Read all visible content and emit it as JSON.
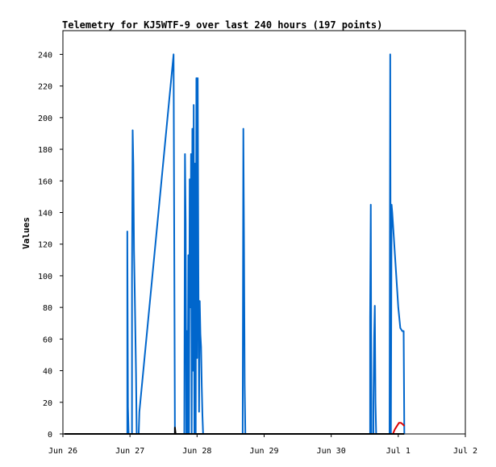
{
  "chart_data": {
    "type": "line",
    "title": "Telemetry for KJ5WTF-9 over last 240 hours (197 points)",
    "xlabel": "",
    "ylabel": "Values",
    "ylim": [
      0,
      255
    ],
    "xlim": [
      0,
      6
    ],
    "x_tick_values": [
      0,
      1,
      2,
      3,
      4,
      5,
      6
    ],
    "x_tick_labels": [
      "Jun 26",
      "Jun 27",
      "Jun 28",
      "Jun 29",
      "Jun 30",
      "Jul 1",
      "Jul 2"
    ],
    "y_ticks": [
      0,
      20,
      40,
      60,
      80,
      100,
      120,
      140,
      160,
      180,
      200,
      220,
      240
    ],
    "grid": false,
    "legend": "none",
    "colors": {
      "series_blue": "#0066cc",
      "series_red": "#dd0000",
      "series_black": "#000000"
    },
    "series": [
      {
        "color": "#0066cc",
        "points": [
          [
            0.96,
            0
          ],
          [
            0.96,
            128
          ],
          [
            0.97,
            17
          ],
          [
            0.98,
            0
          ],
          [
            1.03,
            0
          ],
          [
            1.03,
            97
          ],
          [
            1.04,
            192
          ],
          [
            1.05,
            170
          ],
          [
            1.06,
            116
          ],
          [
            1.07,
            92
          ],
          [
            1.08,
            65
          ],
          [
            1.09,
            38
          ],
          [
            1.1,
            0
          ],
          [
            1.13,
            0
          ],
          [
            1.14,
            14
          ],
          [
            1.65,
            240
          ],
          [
            1.66,
            120
          ],
          [
            1.67,
            0
          ],
          [
            1.81,
            0
          ],
          [
            1.82,
            177
          ],
          [
            1.83,
            134
          ],
          [
            1.84,
            0
          ],
          [
            1.85,
            65
          ],
          [
            1.86,
            0
          ],
          [
            1.87,
            113
          ],
          [
            1.88,
            0
          ],
          [
            1.89,
            161
          ],
          [
            1.9,
            80
          ],
          [
            1.91,
            177
          ],
          [
            1.92,
            0
          ],
          [
            1.93,
            193
          ],
          [
            1.94,
            40
          ],
          [
            1.95,
            208
          ],
          [
            1.96,
            0
          ],
          [
            1.97,
            171
          ],
          [
            1.98,
            0
          ],
          [
            1.99,
            225
          ],
          [
            2.0,
            48
          ],
          [
            2.01,
            225
          ],
          [
            2.02,
            100
          ],
          [
            2.03,
            14
          ],
          [
            2.04,
            84
          ],
          [
            2.05,
            63
          ],
          [
            2.06,
            55
          ],
          [
            2.07,
            30
          ],
          [
            2.08,
            12
          ],
          [
            2.09,
            0
          ],
          [
            2.68,
            0
          ],
          [
            2.69,
            193
          ],
          [
            2.7,
            120
          ],
          [
            2.71,
            31
          ],
          [
            2.72,
            0
          ],
          [
            4.58,
            0
          ],
          [
            4.58,
            73
          ],
          [
            4.59,
            145
          ],
          [
            4.6,
            0
          ],
          [
            4.63,
            0
          ],
          [
            4.63,
            20
          ],
          [
            4.64,
            61
          ],
          [
            4.65,
            81
          ],
          [
            4.66,
            20
          ],
          [
            4.67,
            0
          ],
          [
            4.87,
            0
          ],
          [
            4.88,
            240
          ],
          [
            4.89,
            0
          ],
          [
            4.9,
            145
          ],
          [
            4.91,
            140
          ],
          [
            4.94,
            120
          ],
          [
            4.97,
            100
          ],
          [
            5.0,
            80
          ],
          [
            5.03,
            67
          ],
          [
            5.06,
            65
          ],
          [
            5.08,
            65
          ],
          [
            5.09,
            0
          ]
        ]
      },
      {
        "color": "#dd0000",
        "points": [
          [
            4.92,
            0
          ],
          [
            4.95,
            3
          ],
          [
            4.98,
            5
          ],
          [
            5.01,
            7
          ],
          [
            5.04,
            7
          ],
          [
            5.07,
            6
          ],
          [
            5.09,
            5
          ]
        ]
      },
      {
        "color": "#000000",
        "points": [
          [
            0.02,
            0
          ],
          [
            5.09,
            0
          ]
        ]
      },
      {
        "color": "#000000",
        "points": [
          [
            1.67,
            0
          ],
          [
            1.67,
            4
          ],
          [
            1.68,
            0
          ]
        ]
      }
    ]
  }
}
